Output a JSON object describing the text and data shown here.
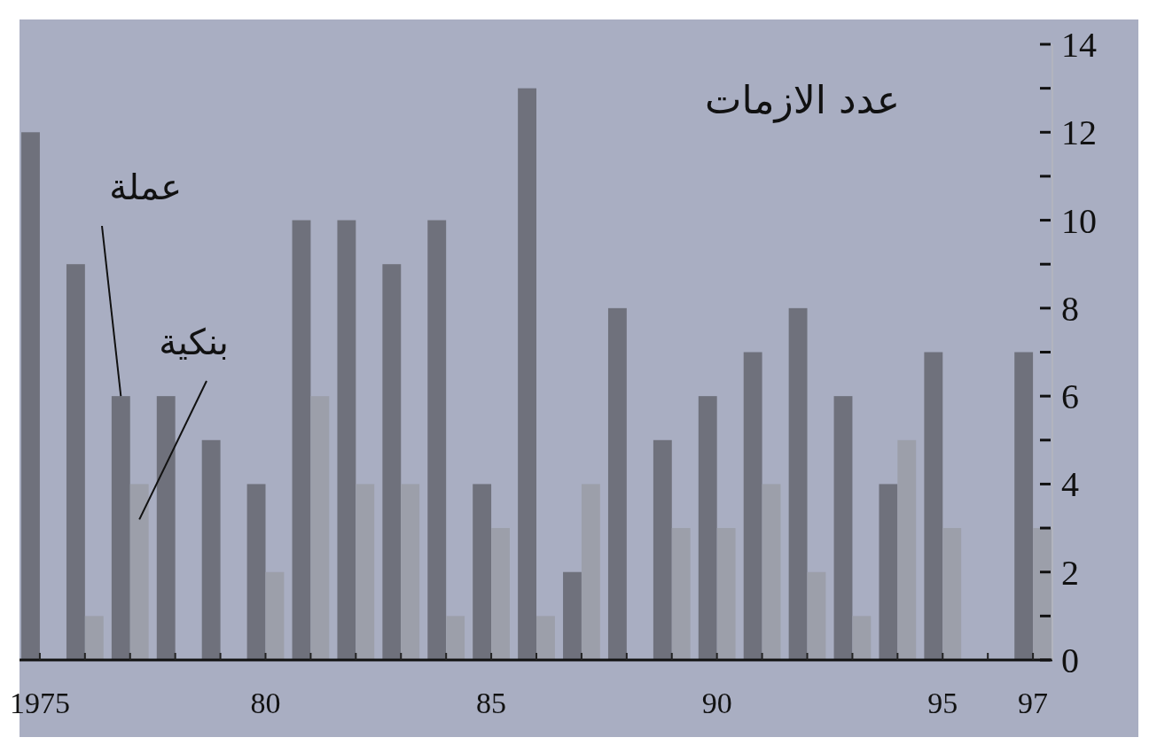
{
  "chart_data": {
    "type": "bar",
    "ylabel": "عدد الازمات",
    "categories": [
      "1975",
      null,
      null,
      null,
      null,
      "80",
      null,
      null,
      null,
      null,
      "85",
      null,
      null,
      null,
      null,
      "90",
      null,
      null,
      null,
      null,
      "95",
      null,
      "97"
    ],
    "series": [
      {
        "name": "عملة",
        "color": "#6f717c",
        "values": [
          12,
          9,
          6,
          6,
          5,
          4,
          10,
          10,
          9,
          10,
          4,
          13,
          2,
          8,
          5,
          6,
          7,
          8,
          6,
          4,
          7,
          0,
          7
        ]
      },
      {
        "name": "بنكية",
        "color": "#9c9faa",
        "values": [
          0,
          1,
          4,
          0,
          0,
          2,
          6,
          4,
          4,
          1,
          3,
          1,
          4,
          0,
          3,
          3,
          4,
          2,
          1,
          5,
          3,
          0,
          3
        ]
      }
    ],
    "ylim": [
      0,
      14
    ],
    "yticks": [
      0,
      {
        "value": 1,
        "label": null
      },
      2,
      {
        "value": 3,
        "label": null
      },
      4,
      {
        "value": 5,
        "label": null
      },
      6,
      {
        "value": 7,
        "label": null
      },
      8,
      {
        "value": 9,
        "label": null
      },
      10,
      {
        "value": 11,
        "label": null
      },
      12,
      {
        "value": 13,
        "label": null
      },
      14
    ]
  }
}
